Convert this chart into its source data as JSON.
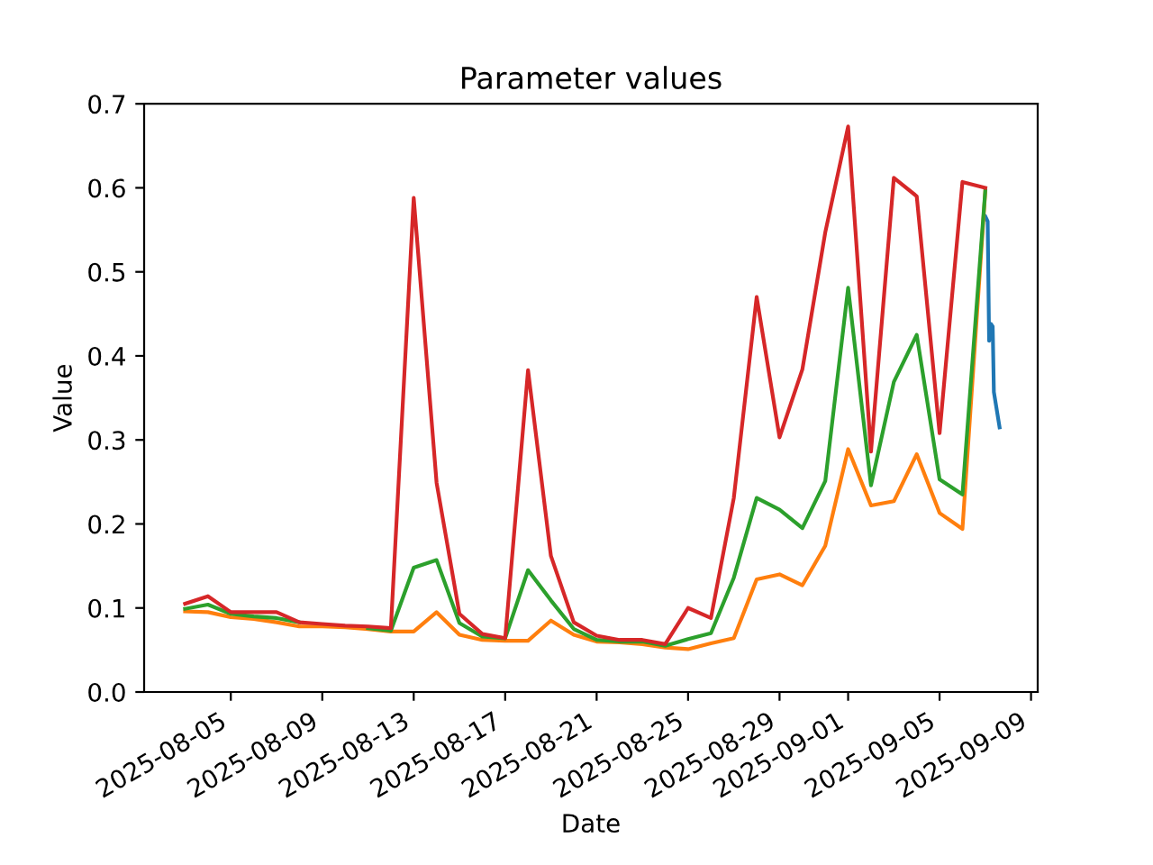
{
  "chart_data": {
    "type": "line",
    "title": "Parameter values",
    "xlabel": "Date",
    "ylabel": "Value",
    "x": [
      "2025-08-03",
      "2025-08-04",
      "2025-08-05",
      "2025-08-06",
      "2025-08-07",
      "2025-08-08",
      "2025-08-09",
      "2025-08-10",
      "2025-08-11",
      "2025-08-12",
      "2025-08-13",
      "2025-08-14",
      "2025-08-15",
      "2025-08-16",
      "2025-08-17",
      "2025-08-18",
      "2025-08-19",
      "2025-08-20",
      "2025-08-21",
      "2025-08-22",
      "2025-08-23",
      "2025-08-24",
      "2025-08-25",
      "2025-08-26",
      "2025-08-27",
      "2025-08-28",
      "2025-08-29",
      "2025-08-30",
      "2025-08-31",
      "2025-09-01",
      "2025-09-02",
      "2025-09-03",
      "2025-09-04",
      "2025-09-05",
      "2025-09-06",
      "2025-09-07"
    ],
    "series": [
      {
        "color": "#1f77b4",
        "x": [
          "2025-09-07T00:00",
          "2025-09-07T02:30",
          "2025-09-07T04:00",
          "2025-09-07T06:00",
          "2025-09-07T07:45",
          "2025-09-07T09:00",
          "2025-09-07T15:00"
        ],
        "values": [
          0.566,
          0.56,
          0.418,
          0.438,
          0.435,
          0.357,
          0.315
        ]
      },
      {
        "color": "#ff7f0e",
        "values": [
          0.096,
          0.095,
          0.089,
          0.087,
          0.083,
          0.078,
          0.078,
          0.077,
          0.075,
          0.072,
          0.072,
          0.095,
          0.068,
          0.062,
          0.061,
          0.061,
          0.085,
          0.068,
          0.06,
          0.059,
          0.057,
          0.053,
          0.051,
          0.058,
          0.064,
          0.134,
          0.14,
          0.127,
          0.174,
          0.289,
          0.222,
          0.227,
          0.283,
          0.213,
          0.194,
          0.596
        ]
      },
      {
        "color": "#2ca02c",
        "values": [
          0.099,
          0.104,
          0.093,
          0.09,
          0.088,
          0.083,
          null,
          null,
          0.076,
          0.073,
          0.148,
          0.157,
          0.082,
          0.066,
          0.064,
          0.145,
          0.109,
          0.075,
          0.062,
          0.06,
          0.06,
          0.055,
          0.063,
          0.07,
          0.136,
          0.231,
          0.217,
          0.195,
          0.251,
          0.481,
          0.246,
          0.369,
          0.425,
          0.253,
          0.235,
          0.597
        ]
      },
      {
        "color": "#d62728",
        "values": [
          0.105,
          0.114,
          0.095,
          0.095,
          0.095,
          0.083,
          0.081,
          0.079,
          0.078,
          0.076,
          0.588,
          0.249,
          0.093,
          0.069,
          0.064,
          0.383,
          0.162,
          0.083,
          0.067,
          0.062,
          0.062,
          0.057,
          0.1,
          0.088,
          0.231,
          0.47,
          0.303,
          0.384,
          0.547,
          0.673,
          0.286,
          0.612,
          0.59,
          0.308,
          0.607,
          0.6
        ]
      }
    ],
    "xlim": [
      "2025-08-01T05:00",
      "2025-09-09T07:00"
    ],
    "xticks": [
      "2025-08-05",
      "2025-08-09",
      "2025-08-13",
      "2025-08-17",
      "2025-08-21",
      "2025-08-25",
      "2025-08-29",
      "2025-09-01",
      "2025-09-05",
      "2025-09-09"
    ],
    "ylim": [
      0,
      0.7
    ],
    "yticks": [
      {
        "value": 0,
        "label": "0.0"
      },
      0.1,
      0.2,
      0.3,
      0.4,
      0.5,
      0.6,
      0.7
    ],
    "grid": false,
    "legend": false,
    "marker": "none",
    "line_style": "solid"
  }
}
